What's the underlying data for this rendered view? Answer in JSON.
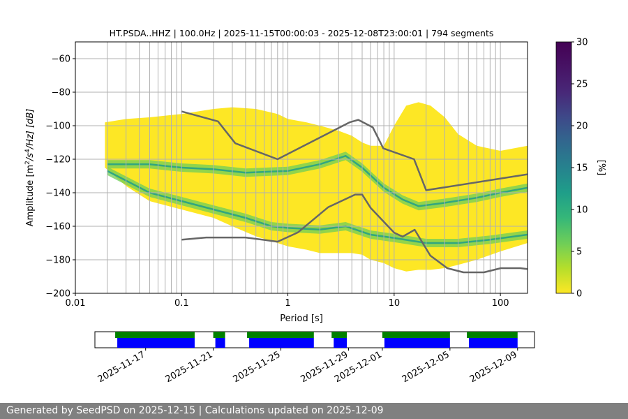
{
  "chart_data": {
    "type": "heatmap",
    "title": "HT.PSDA..HHZ | 100.0Hz | 2025-11-15T00:00:03 - 2025-12-08T23:00:01 | 794 segments",
    "xlabel": "Period [s]",
    "ylabel_parts": {
      "prefix": "Amplitude [m",
      "sup1": "2",
      "mid": "/s",
      "sup2": "4",
      "suffix": "/Hz] [dB]"
    },
    "x_scale": "log",
    "xlim": [
      0.01,
      180
    ],
    "ylim": [
      -200,
      -50
    ],
    "x_ticks": [
      {
        "value": 0.01,
        "label": "0.01"
      },
      {
        "value": 0.1,
        "label": "0.1"
      },
      {
        "value": 1,
        "label": "1"
      },
      {
        "value": 10,
        "label": "10"
      },
      {
        "value": 100,
        "label": "100"
      }
    ],
    "y_ticks": [
      {
        "value": -60,
        "label": "−60"
      },
      {
        "value": -80,
        "label": "−80"
      },
      {
        "value": -100,
        "label": "−100"
      },
      {
        "value": -120,
        "label": "−120"
      },
      {
        "value": -140,
        "label": "−140"
      },
      {
        "value": -160,
        "label": "−160"
      },
      {
        "value": -180,
        "label": "−180"
      },
      {
        "value": -200,
        "label": "−200"
      }
    ],
    "grid_x_values": [
      0.02,
      0.03,
      0.04,
      0.05,
      0.06,
      0.07,
      0.08,
      0.09,
      0.1,
      0.2,
      0.3,
      0.4,
      0.5,
      0.6,
      0.7,
      0.8,
      0.9,
      1,
      2,
      3,
      4,
      5,
      6,
      7,
      8,
      9,
      10,
      20,
      30,
      40,
      50,
      60,
      70,
      80,
      90,
      100
    ],
    "grid_y_values": [
      -60,
      -80,
      -100,
      -120,
      -140,
      -160,
      -180
    ],
    "colorbar": {
      "label": "[%]",
      "range": [
        0,
        30
      ],
      "ticks": [
        "0",
        "5",
        "10",
        "15",
        "20",
        "25",
        "30"
      ]
    },
    "noise_model_high": {
      "name": "NHNM",
      "period": [
        0.1,
        0.22,
        0.32,
        0.8,
        3.8,
        4.6,
        6.3,
        7.9,
        15.4,
        20,
        180
      ],
      "db": [
        -91.5,
        -97.4,
        -110.5,
        -120,
        -98,
        -96.5,
        -101,
        -113.5,
        -120,
        -138.5,
        -129
      ]
    },
    "noise_model_low": {
      "name": "NLNM",
      "period": [
        0.1,
        0.17,
        0.4,
        0.8,
        1.24,
        2.4,
        4.3,
        5,
        6,
        10,
        12,
        15.6,
        21.9,
        31.6,
        45,
        70,
        101,
        154,
        180
      ],
      "db": [
        -168,
        -166.7,
        -166.7,
        -169.2,
        -163.7,
        -148.6,
        -141.1,
        -141.1,
        -149,
        -163.8,
        -166.2,
        -162.1,
        -177.5,
        -185,
        -187.5,
        -187.5,
        -185,
        -185,
        -185.5
      ]
    },
    "density_bands": [
      {
        "name": "upper-main-mode",
        "period": [
          0.02,
          0.05,
          0.1,
          0.2,
          0.4,
          1,
          2,
          3.5,
          5,
          8,
          12,
          17,
          30,
          60,
          100,
          180
        ],
        "db": [
          -123,
          -123,
          -125,
          -126,
          -128,
          -127,
          -123,
          -118,
          -125,
          -137,
          -144,
          -148,
          -146,
          -143,
          -140,
          -137
        ],
        "peak_percent": 10
      },
      {
        "name": "lower-main-mode",
        "period": [
          0.02,
          0.05,
          0.1,
          0.2,
          0.4,
          0.7,
          1,
          2,
          3.5,
          6,
          10,
          20,
          40,
          80,
          180
        ],
        "db": [
          -127,
          -140,
          -145,
          -150,
          -155,
          -160,
          -161,
          -162,
          -160,
          -165,
          -167,
          -170,
          -170,
          -168,
          -165
        ],
        "peak_percent": 8
      }
    ],
    "density_envelope": {
      "period": [
        0.019,
        0.03,
        0.05,
        0.1,
        0.2,
        0.3,
        0.5,
        0.8,
        1,
        1.5,
        2,
        3,
        4,
        5,
        6,
        8,
        10,
        13,
        17,
        22,
        30,
        40,
        60,
        100,
        180
      ],
      "top_db": [
        -98,
        -96,
        -95,
        -93,
        -90,
        -89,
        -90,
        -93,
        -96,
        -98,
        -100,
        -103,
        -106,
        -110,
        -112,
        -112,
        -100,
        -88,
        -86,
        -88,
        -95,
        -105,
        -112,
        -115,
        -112
      ],
      "bottom_db": [
        -125,
        -136,
        -145,
        -150,
        -155,
        -160,
        -166,
        -170,
        -172,
        -174,
        -176,
        -176,
        -176,
        -177,
        -180,
        -182,
        -185,
        -187,
        -186,
        -186,
        -185,
        -183,
        -180,
        -175,
        -170
      ]
    },
    "availability": {
      "start": "2025-11-14",
      "end": "2025-12-10",
      "date_tick_labels": [
        "2025-11-17",
        "2025-11-21",
        "2025-11-25",
        "2025-11-29",
        "2025-12-01",
        "2025-12-05",
        "2025-12-09"
      ],
      "blocks": [
        {
          "start_day": 1.2,
          "end_day": 5.9
        },
        {
          "start_day": 7.0,
          "end_day": 7.7
        },
        {
          "start_day": 9.0,
          "end_day": 12.95
        },
        {
          "start_day": 14.0,
          "end_day": 14.9
        },
        {
          "start_day": 17.0,
          "end_day": 21.0
        },
        {
          "start_day": 22.0,
          "end_day": 25.0
        }
      ],
      "colors": {
        "top": "#008000",
        "bottom": "#0000ff"
      }
    }
  },
  "footer": {
    "text": "Generated by SeedPSD on 2025-12-15 | Calculations updated on 2025-12-09"
  }
}
